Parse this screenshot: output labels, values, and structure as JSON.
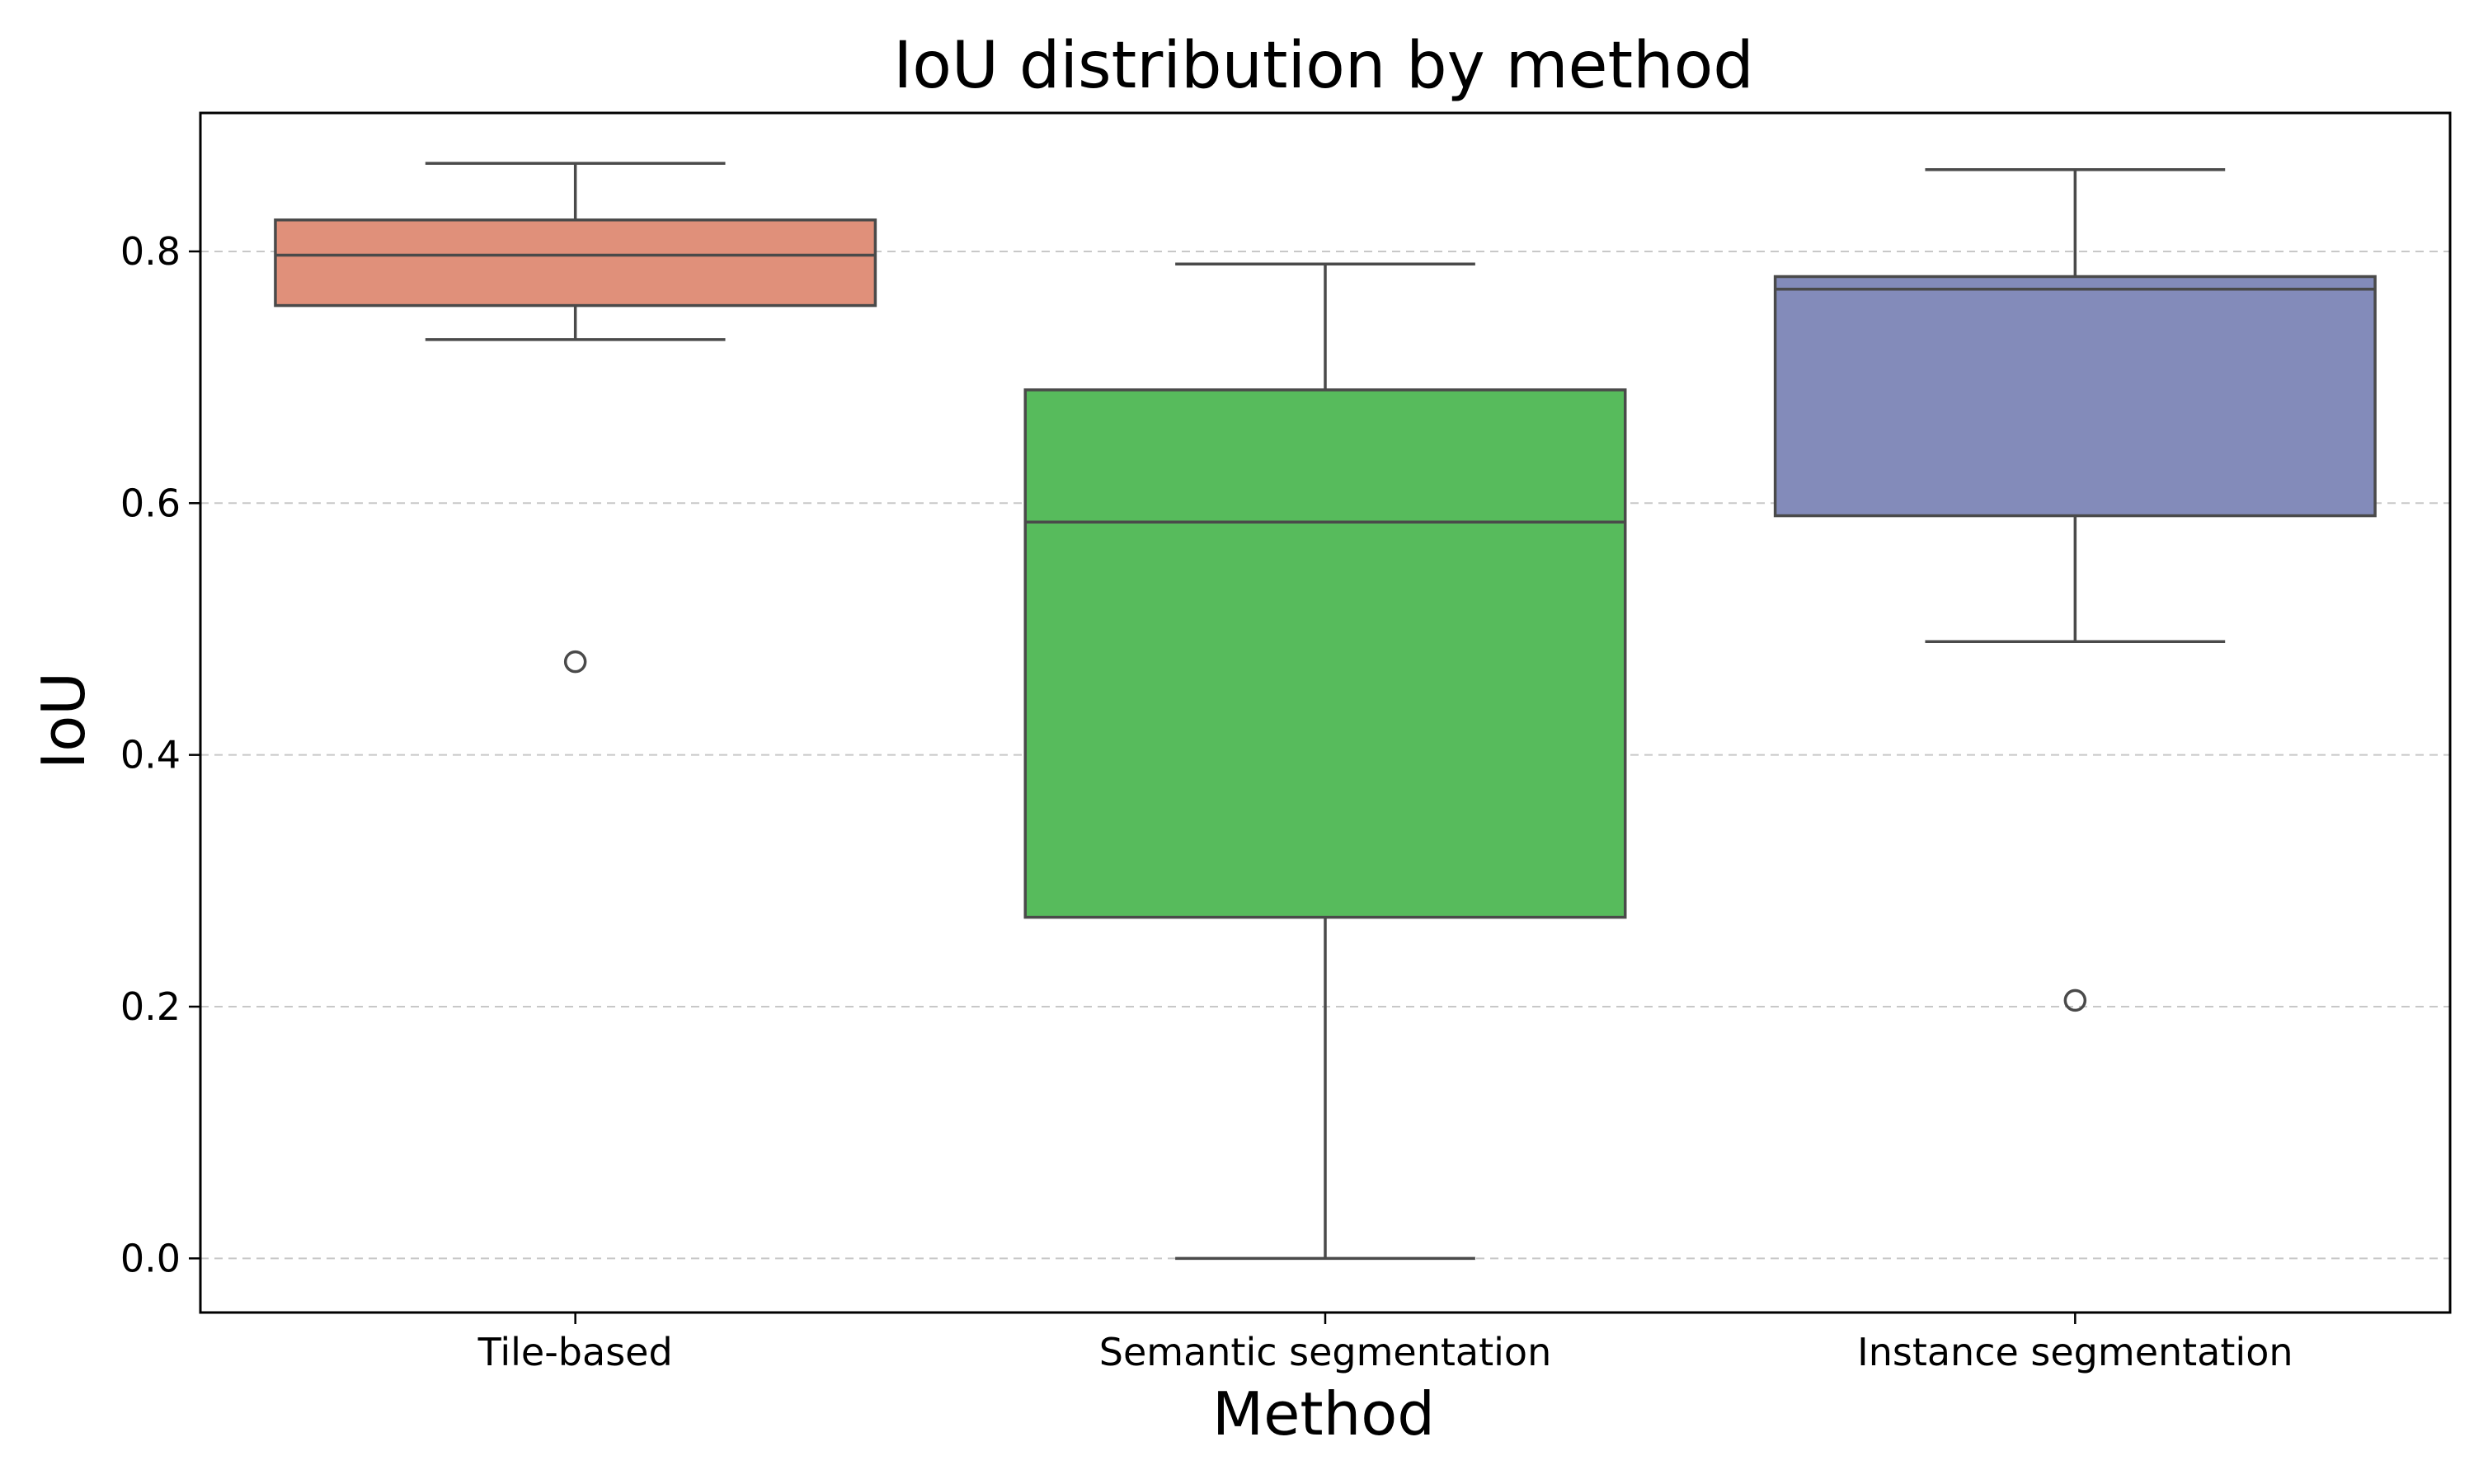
{
  "chart_data": {
    "type": "box",
    "title": "IoU distribution by method",
    "xlabel": "Method",
    "ylabel": "IoU",
    "ylim": [
      -0.043,
      0.91
    ],
    "yticks": [
      0.0,
      0.2,
      0.4,
      0.6,
      0.8
    ],
    "ytick_labels": [
      "0.0",
      "0.2",
      "0.4",
      "0.6",
      "0.8"
    ],
    "grid": "y, dashed",
    "categories": [
      "Tile-based",
      "Semantic segmentation",
      "Instance segmentation"
    ],
    "boxes": [
      {
        "name": "Tile-based",
        "color": "#e0907a",
        "whisker_low": 0.73,
        "q1": 0.757,
        "median": 0.797,
        "q3": 0.825,
        "whisker_high": 0.87,
        "fliers": [
          0.474
        ]
      },
      {
        "name": "Semantic segmentation",
        "color": "#57bb5c",
        "whisker_low": 0.0,
        "q1": 0.271,
        "median": 0.585,
        "q3": 0.69,
        "whisker_high": 0.79,
        "fliers": []
      },
      {
        "name": "Instance segmentation",
        "color": "#838bba",
        "whisker_low": 0.49,
        "q1": 0.59,
        "median": 0.77,
        "q3": 0.78,
        "whisker_high": 0.865,
        "fliers": [
          0.205
        ]
      }
    ]
  }
}
